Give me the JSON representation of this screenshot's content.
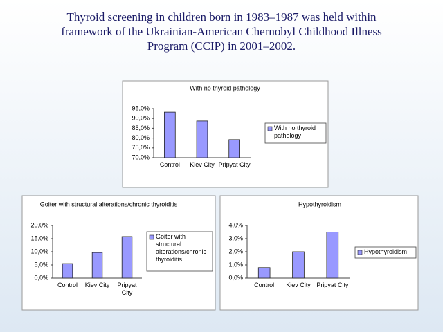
{
  "title": "Thyroid screening in children born in 1983–1987 was held within framework of the Ukrainian-American Chernobyl Childhood Illness Program (CCIP) in 2001–2002.",
  "chart_data": [
    {
      "type": "bar",
      "title": "With no thyroid pathology",
      "categories": [
        "Control",
        "Kiev City",
        "Pripyat City"
      ],
      "series": [
        {
          "name": "With no thyroid pathology",
          "color": "#9999ff",
          "values": [
            93.2,
            88.7,
            79.2
          ]
        }
      ],
      "ylim": [
        70,
        95
      ],
      "yticks": [
        {
          "value": 70,
          "label": "70,0%"
        },
        {
          "value": 75,
          "label": "75,0%"
        },
        {
          "value": 80,
          "label": "80,0%"
        },
        {
          "value": 85,
          "label": "85,0%"
        },
        {
          "value": 90,
          "label": "90,0%"
        },
        {
          "value": 95,
          "label": "95,0%"
        }
      ],
      "legend": "right"
    },
    {
      "type": "bar",
      "title": "Goiter with structural alterations/chronic thyroiditis",
      "categories": [
        "Control",
        "Kiev City",
        "Pripyat City"
      ],
      "series": [
        {
          "name": "Goiter with structural alterations/chronic thyroiditis",
          "color": "#9999ff",
          "values": [
            5.5,
            9.7,
            15.8
          ]
        }
      ],
      "ylim": [
        0,
        20
      ],
      "yticks": [
        {
          "value": 0,
          "label": "0,0%"
        },
        {
          "value": 5,
          "label": "5,0%"
        },
        {
          "value": 10,
          "label": "10,0%"
        },
        {
          "value": 15,
          "label": "15,0%"
        },
        {
          "value": 20,
          "label": "20,0%"
        }
      ],
      "legend": "right"
    },
    {
      "type": "bar",
      "title": "Hypothyroidism",
      "categories": [
        "Control",
        "Kiev City",
        "Pripyat City"
      ],
      "series": [
        {
          "name": "Hypothyroidism",
          "color": "#9999ff",
          "values": [
            0.8,
            2.0,
            3.5
          ]
        }
      ],
      "ylim": [
        0,
        4
      ],
      "yticks": [
        {
          "value": 0,
          "label": "0,0%"
        },
        {
          "value": 1,
          "label": "1,0%"
        },
        {
          "value": 2,
          "label": "2,0%"
        },
        {
          "value": 3,
          "label": "3,0%"
        },
        {
          "value": 4,
          "label": "4,0%"
        }
      ],
      "legend": "right"
    }
  ]
}
